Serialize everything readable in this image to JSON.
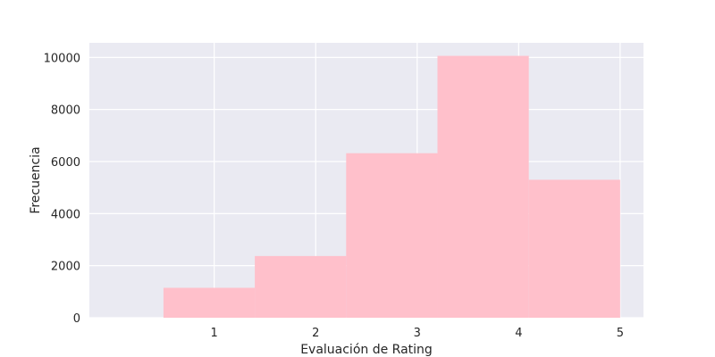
{
  "chart_data": {
    "type": "bar",
    "title": "",
    "xlabel": "Evaluación de Rating",
    "ylabel": "Frecuencia",
    "bins": [
      {
        "x0": 0.5,
        "x1": 1.4,
        "value": 1150
      },
      {
        "x0": 1.4,
        "x1": 2.3,
        "value": 2370
      },
      {
        "x0": 2.3,
        "x1": 3.2,
        "value": 6320
      },
      {
        "x0": 3.2,
        "x1": 4.1,
        "value": 10060
      },
      {
        "x0": 4.1,
        "x1": 5.0,
        "value": 5300
      }
    ],
    "xlim": [
      -0.23,
      5.23
    ],
    "ylim": [
      0,
      10560
    ],
    "xticks": [
      1,
      2,
      3,
      4,
      5
    ],
    "yticks": [
      0,
      2000,
      4000,
      6000,
      8000,
      10000
    ],
    "grid": true,
    "colors": {
      "bar": "#FFC0CB",
      "background": "#EAEAF2",
      "grid": "#FFFFFF"
    }
  }
}
